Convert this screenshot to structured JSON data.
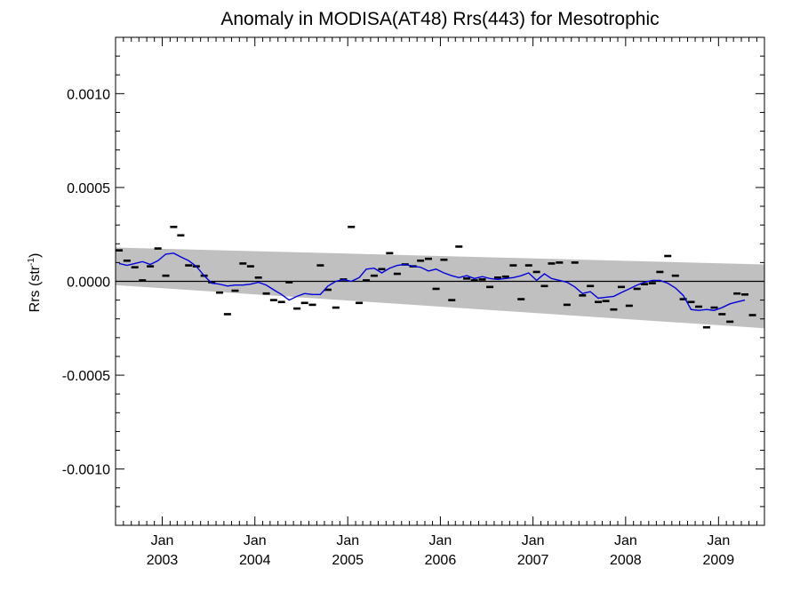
{
  "chart_data": {
    "type": "line",
    "title": "Anomaly in MODISA(AT48) Rrs(443) for Mesotrophic",
    "ylabel": "Rrs (str",
    "ylabel_superscript": "-1",
    "ylabel_suffix": ")",
    "xlabel": "",
    "ylim": [
      -0.0013,
      0.0013
    ],
    "xlim": [
      "2002-07-01",
      "2009-07-01"
    ],
    "grid": false,
    "legend": "none",
    "y_ticks": [
      {
        "value": 0.001,
        "label": "0.0010"
      },
      {
        "value": 0.0005,
        "label": "0.0005"
      },
      {
        "value": 0.0,
        "label": "0.0000"
      },
      {
        "value": -0.0005,
        "label": "-0.0005"
      },
      {
        "value": -0.001,
        "label": "-0.0010"
      }
    ],
    "x_ticks": [
      {
        "date": "2003-01-01",
        "month": "Jan",
        "year": "2003"
      },
      {
        "date": "2004-01-01",
        "month": "Jan",
        "year": "2004"
      },
      {
        "date": "2005-01-01",
        "month": "Jan",
        "year": "2005"
      },
      {
        "date": "2006-01-01",
        "month": "Jan",
        "year": "2006"
      },
      {
        "date": "2007-01-01",
        "month": "Jan",
        "year": "2007"
      },
      {
        "date": "2008-01-01",
        "month": "Jan",
        "year": "2008"
      },
      {
        "date": "2009-01-01",
        "month": "Jan",
        "year": "2009"
      }
    ],
    "confidence_band": {
      "start": {
        "date": "2002-07-01",
        "upper": 0.00018,
        "lower": -2e-05
      },
      "end": {
        "date": "2009-07-01",
        "upper": 9e-05,
        "lower": -0.00025
      },
      "color": "#c0c0c0"
    },
    "zero_line_color": "#000000",
    "series": [
      {
        "kind": "monthly_anomaly_markers",
        "color": "#000000",
        "points": [
          {
            "x": "2002-07",
            "y": 0.000165
          },
          {
            "x": "2002-08",
            "y": 0.00011
          },
          {
            "x": "2002-09",
            "y": 7.5e-05
          },
          {
            "x": "2002-10",
            "y": 5e-06
          },
          {
            "x": "2002-11",
            "y": 8e-05
          },
          {
            "x": "2002-12",
            "y": 0.000175
          },
          {
            "x": "2003-01",
            "y": 3e-05
          },
          {
            "x": "2003-02",
            "y": 0.00029
          },
          {
            "x": "2003-03",
            "y": 0.000245
          },
          {
            "x": "2003-04",
            "y": 8.5e-05
          },
          {
            "x": "2003-05",
            "y": 8e-05
          },
          {
            "x": "2003-06",
            "y": 3e-05
          },
          {
            "x": "2003-07",
            "y": -5e-06
          },
          {
            "x": "2003-08",
            "y": -6e-05
          },
          {
            "x": "2003-09",
            "y": -0.000175
          },
          {
            "x": "2003-10",
            "y": -5e-05
          },
          {
            "x": "2003-11",
            "y": 9.5e-05
          },
          {
            "x": "2003-12",
            "y": 8e-05
          },
          {
            "x": "2004-01",
            "y": 2e-05
          },
          {
            "x": "2004-02",
            "y": -6.5e-05
          },
          {
            "x": "2004-03",
            "y": -0.0001
          },
          {
            "x": "2004-04",
            "y": -0.00011
          },
          {
            "x": "2004-05",
            "y": -5e-06
          },
          {
            "x": "2004-06",
            "y": -0.000145
          },
          {
            "x": "2004-07",
            "y": -0.000115
          },
          {
            "x": "2004-08",
            "y": -0.000125
          },
          {
            "x": "2004-09",
            "y": 8.5e-05
          },
          {
            "x": "2004-10",
            "y": -4.5e-05
          },
          {
            "x": "2004-11",
            "y": -0.00014
          },
          {
            "x": "2004-12",
            "y": 1e-05
          },
          {
            "x": "2005-01",
            "y": 0.00029
          },
          {
            "x": "2005-02",
            "y": -0.000115
          },
          {
            "x": "2005-03",
            "y": 5e-06
          },
          {
            "x": "2005-04",
            "y": 3e-05
          },
          {
            "x": "2005-05",
            "y": 6.5e-05
          },
          {
            "x": "2005-06",
            "y": 0.00015
          },
          {
            "x": "2005-07",
            "y": 4e-05
          },
          {
            "x": "2005-08",
            "y": 9e-05
          },
          {
            "x": "2005-09",
            "y": 8e-05
          },
          {
            "x": "2005-10",
            "y": 0.00011
          },
          {
            "x": "2005-11",
            "y": 0.00012
          },
          {
            "x": "2005-12",
            "y": -4e-05
          },
          {
            "x": "2006-01",
            "y": 0.000115
          },
          {
            "x": "2006-02",
            "y": -0.0001
          },
          {
            "x": "2006-03",
            "y": 0.000185
          },
          {
            "x": "2006-04",
            "y": 1.5e-05
          },
          {
            "x": "2006-05",
            "y": 5e-06
          },
          {
            "x": "2006-06",
            "y": 1e-05
          },
          {
            "x": "2006-07",
            "y": -3e-05
          },
          {
            "x": "2006-08",
            "y": 2e-05
          },
          {
            "x": "2006-09",
            "y": 2.5e-05
          },
          {
            "x": "2006-10",
            "y": 8.5e-05
          },
          {
            "x": "2006-11",
            "y": -9.5e-05
          },
          {
            "x": "2006-12",
            "y": 8.5e-05
          },
          {
            "x": "2007-01",
            "y": 5e-05
          },
          {
            "x": "2007-02",
            "y": -2.5e-05
          },
          {
            "x": "2007-03",
            "y": 9.5e-05
          },
          {
            "x": "2007-04",
            "y": 0.0001
          },
          {
            "x": "2007-05",
            "y": -0.000125
          },
          {
            "x": "2007-06",
            "y": 0.0001
          },
          {
            "x": "2007-07",
            "y": -7.5e-05
          },
          {
            "x": "2007-08",
            "y": -2.5e-05
          },
          {
            "x": "2007-09",
            "y": -0.00011
          },
          {
            "x": "2007-10",
            "y": -0.000105
          },
          {
            "x": "2007-11",
            "y": -0.00015
          },
          {
            "x": "2007-12",
            "y": -3e-05
          },
          {
            "x": "2008-01",
            "y": -0.00013
          },
          {
            "x": "2008-02",
            "y": -4e-05
          },
          {
            "x": "2008-03",
            "y": -1.5e-05
          },
          {
            "x": "2008-04",
            "y": -1e-05
          },
          {
            "x": "2008-05",
            "y": 5e-05
          },
          {
            "x": "2008-06",
            "y": 0.000135
          },
          {
            "x": "2008-07",
            "y": 3e-05
          },
          {
            "x": "2008-08",
            "y": -9.5e-05
          },
          {
            "x": "2008-09",
            "y": -0.00011
          },
          {
            "x": "2008-10",
            "y": -0.000135
          },
          {
            "x": "2008-11",
            "y": -0.000245
          },
          {
            "x": "2008-12",
            "y": -0.00014
          },
          {
            "x": "2009-01",
            "y": -0.000175
          },
          {
            "x": "2009-02",
            "y": -0.000215
          },
          {
            "x": "2009-03",
            "y": -6.5e-05
          },
          {
            "x": "2009-04",
            "y": -7e-05
          },
          {
            "x": "2009-05",
            "y": -0.00018
          }
        ]
      },
      {
        "kind": "smoothed_line",
        "color": "#0000dd",
        "points": [
          {
            "x": "2002-07",
            "y": 9.5e-05
          },
          {
            "x": "2002-08",
            "y": 8.5e-05
          },
          {
            "x": "2002-09",
            "y": 9.5e-05
          },
          {
            "x": "2002-10",
            "y": 0.000105
          },
          {
            "x": "2002-11",
            "y": 9e-05
          },
          {
            "x": "2002-12",
            "y": 0.00011
          },
          {
            "x": "2003-01",
            "y": 0.000145
          },
          {
            "x": "2003-02",
            "y": 0.00015
          },
          {
            "x": "2003-03",
            "y": 0.00013
          },
          {
            "x": "2003-04",
            "y": 0.00011
          },
          {
            "x": "2003-05",
            "y": 8e-05
          },
          {
            "x": "2003-06",
            "y": 3e-05
          },
          {
            "x": "2003-07",
            "y": -1e-05
          },
          {
            "x": "2003-08",
            "y": -1.5e-05
          },
          {
            "x": "2003-09",
            "y": -2.5e-05
          },
          {
            "x": "2003-10",
            "y": -2e-05
          },
          {
            "x": "2003-11",
            "y": -2e-05
          },
          {
            "x": "2003-12",
            "y": -1.5e-05
          },
          {
            "x": "2004-01",
            "y": -5e-06
          },
          {
            "x": "2004-02",
            "y": -2e-05
          },
          {
            "x": "2004-03",
            "y": -4.5e-05
          },
          {
            "x": "2004-04",
            "y": -7e-05
          },
          {
            "x": "2004-05",
            "y": -0.0001
          },
          {
            "x": "2004-06",
            "y": -8e-05
          },
          {
            "x": "2004-07",
            "y": -6.5e-05
          },
          {
            "x": "2004-08",
            "y": -7e-05
          },
          {
            "x": "2004-09",
            "y": -7e-05
          },
          {
            "x": "2004-10",
            "y": -2.5e-05
          },
          {
            "x": "2004-11",
            "y": 0.0
          },
          {
            "x": "2004-12",
            "y": 1e-05
          },
          {
            "x": "2005-01",
            "y": 0.0
          },
          {
            "x": "2005-02",
            "y": 2e-05
          },
          {
            "x": "2005-03",
            "y": 6.5e-05
          },
          {
            "x": "2005-04",
            "y": 7e-05
          },
          {
            "x": "2005-05",
            "y": 4.5e-05
          },
          {
            "x": "2005-06",
            "y": 7e-05
          },
          {
            "x": "2005-07",
            "y": 8.5e-05
          },
          {
            "x": "2005-08",
            "y": 9e-05
          },
          {
            "x": "2005-09",
            "y": 8e-05
          },
          {
            "x": "2005-10",
            "y": 7.5e-05
          },
          {
            "x": "2005-11",
            "y": 5.5e-05
          },
          {
            "x": "2005-12",
            "y": 6.5e-05
          },
          {
            "x": "2006-01",
            "y": 4.5e-05
          },
          {
            "x": "2006-02",
            "y": 3e-05
          },
          {
            "x": "2006-03",
            "y": 2e-05
          },
          {
            "x": "2006-04",
            "y": 3e-05
          },
          {
            "x": "2006-05",
            "y": 1.5e-05
          },
          {
            "x": "2006-06",
            "y": 2.5e-05
          },
          {
            "x": "2006-07",
            "y": 1.5e-05
          },
          {
            "x": "2006-08",
            "y": 1e-05
          },
          {
            "x": "2006-09",
            "y": 1.5e-05
          },
          {
            "x": "2006-10",
            "y": 2e-05
          },
          {
            "x": "2006-11",
            "y": 3e-05
          },
          {
            "x": "2006-12",
            "y": 4.5e-05
          },
          {
            "x": "2007-01",
            "y": 5e-06
          },
          {
            "x": "2007-02",
            "y": 4e-05
          },
          {
            "x": "2007-03",
            "y": 1.5e-05
          },
          {
            "x": "2007-04",
            "y": 5e-06
          },
          {
            "x": "2007-05",
            "y": -5e-06
          },
          {
            "x": "2007-06",
            "y": -3e-05
          },
          {
            "x": "2007-07",
            "y": -6.5e-05
          },
          {
            "x": "2007-08",
            "y": -5.5e-05
          },
          {
            "x": "2007-09",
            "y": -9e-05
          },
          {
            "x": "2007-10",
            "y": -8.5e-05
          },
          {
            "x": "2007-11",
            "y": -8e-05
          },
          {
            "x": "2007-12",
            "y": -6e-05
          },
          {
            "x": "2008-01",
            "y": -4e-05
          },
          {
            "x": "2008-02",
            "y": -2e-05
          },
          {
            "x": "2008-03",
            "y": -5e-06
          },
          {
            "x": "2008-04",
            "y": 5e-06
          },
          {
            "x": "2008-05",
            "y": 5e-06
          },
          {
            "x": "2008-06",
            "y": -1e-05
          },
          {
            "x": "2008-07",
            "y": -3.5e-05
          },
          {
            "x": "2008-08",
            "y": -7.5e-05
          },
          {
            "x": "2008-09",
            "y": -0.00015
          },
          {
            "x": "2008-10",
            "y": -0.000155
          },
          {
            "x": "2008-11",
            "y": -0.00015
          },
          {
            "x": "2008-12",
            "y": -0.000155
          },
          {
            "x": "2009-01",
            "y": -0.00014
          },
          {
            "x": "2009-02",
            "y": -0.00012
          },
          {
            "x": "2009-03",
            "y": -0.00011
          },
          {
            "x": "2009-04",
            "y": -0.0001
          }
        ]
      }
    ]
  }
}
